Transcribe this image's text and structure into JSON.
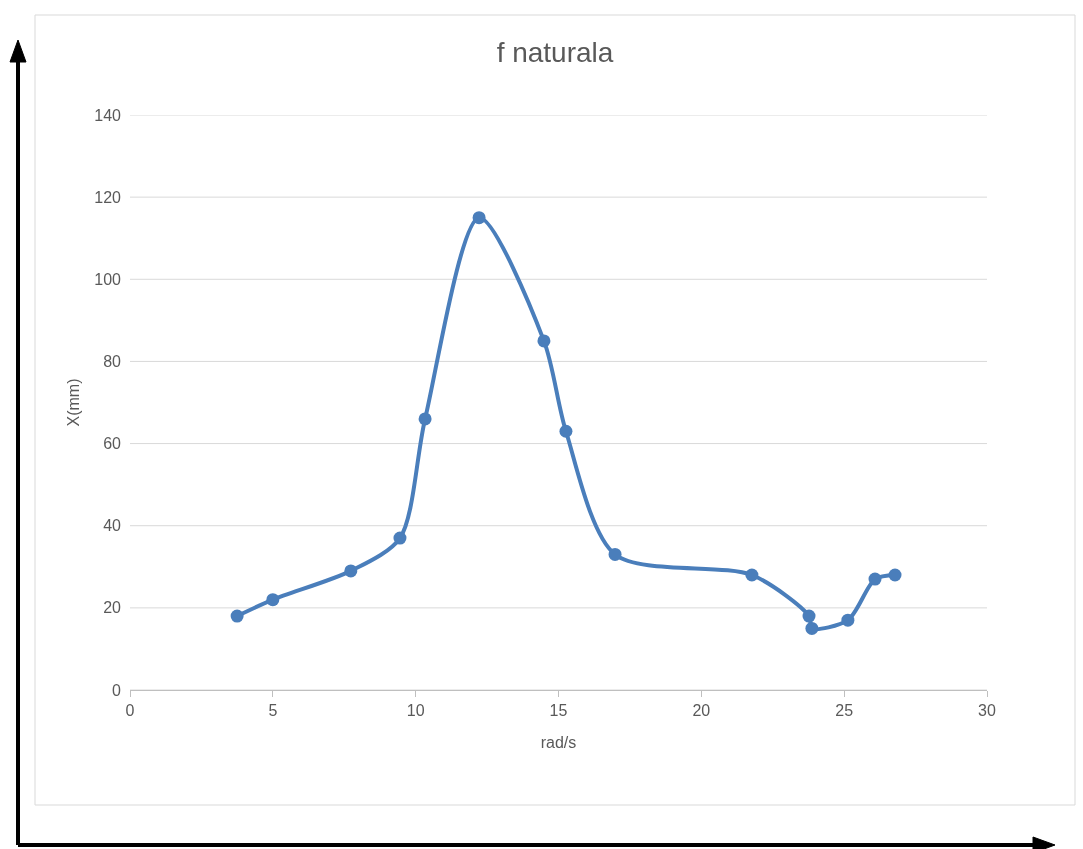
{
  "chart_data": {
    "type": "line",
    "title": "f naturala",
    "xlabel": "rad/s",
    "ylabel": "X(mm)",
    "x": [
      3.75,
      5.0,
      7.73,
      9.45,
      10.33,
      12.22,
      14.49,
      15.26,
      16.98,
      21.77,
      23.77,
      23.87,
      25.13,
      26.08,
      26.78
    ],
    "series": [
      {
        "color": "#4a7ebb",
        "values": [
          18,
          22,
          29,
          37,
          66,
          115,
          85,
          63,
          33,
          28,
          18,
          15,
          17,
          27,
          28
        ]
      }
    ],
    "xlim": [
      0,
      30
    ],
    "xticks": [
      0,
      5,
      10,
      15,
      20,
      25,
      30
    ],
    "ylim": [
      0,
      140
    ],
    "yticks": [
      0,
      20,
      40,
      60,
      80,
      100,
      120,
      140
    ],
    "grid": "y",
    "marker": "circle",
    "line_style": "solid"
  }
}
